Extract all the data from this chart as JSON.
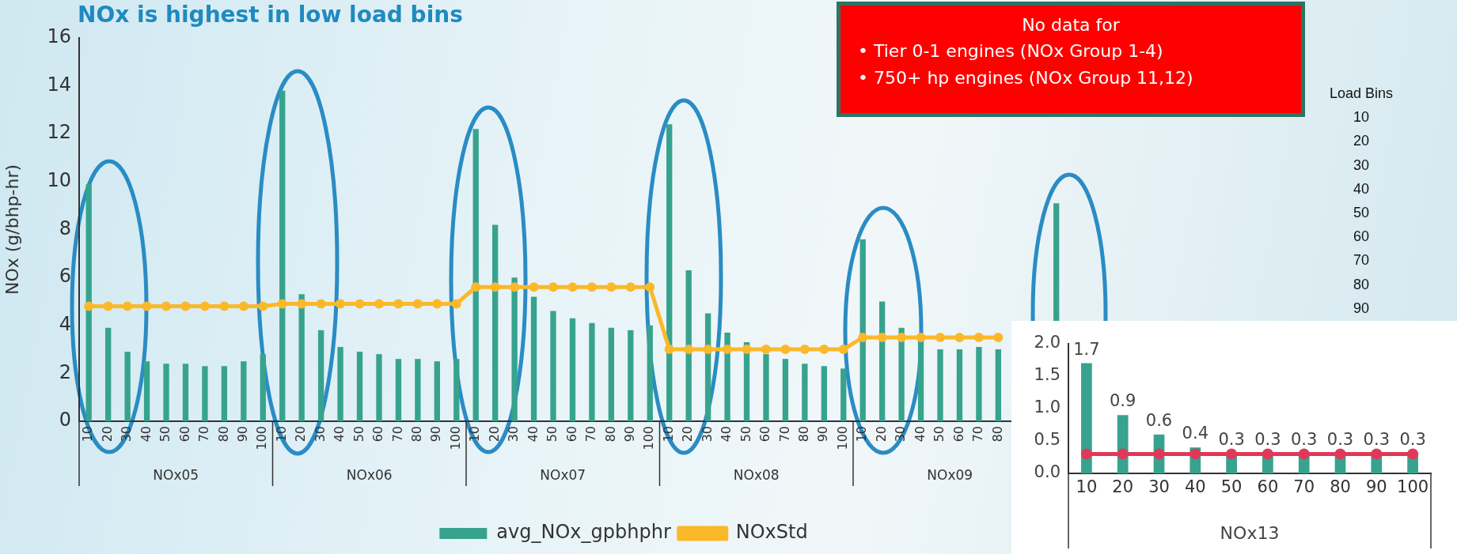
{
  "chart_data": [
    {
      "type": "bar",
      "title": "NOx is highest in low load bins",
      "ylabel": "NOx (g/bhp-hr)",
      "categories": [
        "10",
        "20",
        "30",
        "40",
        "50",
        "60",
        "70",
        "80",
        "90",
        "100",
        "10",
        "20",
        "30",
        "40",
        "50",
        "60",
        "70",
        "80",
        "90",
        "100",
        "10",
        "20",
        "30",
        "40",
        "50",
        "60",
        "70",
        "80",
        "90",
        "100",
        "10",
        "20",
        "30",
        "40",
        "50",
        "60",
        "70",
        "80",
        "90",
        "100",
        "10",
        "20",
        "30",
        "40",
        "50",
        "60",
        "70",
        "80",
        null,
        null,
        null,
        null,
        null,
        null,
        null,
        null,
        null,
        null,
        null,
        null
      ],
      "series": [
        {
          "name": "avg_NOx_gpbhphr",
          "color": "#37a38e",
          "values": [
            9.9,
            3.9,
            2.9,
            2.5,
            2.4,
            2.4,
            2.3,
            2.3,
            2.5,
            2.8,
            13.8,
            5.3,
            3.8,
            3.1,
            2.9,
            2.8,
            2.6,
            2.6,
            2.5,
            2.6,
            12.2,
            8.2,
            6.0,
            5.2,
            4.6,
            4.3,
            4.1,
            3.9,
            3.8,
            4.0,
            12.4,
            6.3,
            4.5,
            3.7,
            3.3,
            2.8,
            2.6,
            2.4,
            2.3,
            2.2,
            7.6,
            5.0,
            3.9,
            3.4,
            3.0,
            3.0,
            3.1,
            3.0,
            null,
            null,
            9.1,
            null,
            null,
            null,
            null,
            null,
            null,
            null,
            null,
            null
          ]
        },
        {
          "name": "NOxStd",
          "type": "line",
          "color": "#fbb829",
          "values": [
            4.8,
            4.8,
            4.8,
            4.8,
            4.8,
            4.8,
            4.8,
            4.8,
            4.8,
            4.8,
            4.9,
            4.9,
            4.9,
            4.9,
            4.9,
            4.9,
            4.9,
            4.9,
            4.9,
            4.9,
            5.6,
            5.6,
            5.6,
            5.6,
            5.6,
            5.6,
            5.6,
            5.6,
            5.6,
            5.6,
            3.0,
            3.0,
            3.0,
            3.0,
            3.0,
            3.0,
            3.0,
            3.0,
            3.0,
            3.0,
            3.5,
            3.5,
            3.5,
            3.5,
            3.5,
            3.5,
            3.5,
            3.5,
            null,
            null,
            null,
            null,
            null,
            null,
            null,
            null,
            null,
            null,
            null,
            null
          ]
        }
      ],
      "ylim": [
        0,
        16
      ],
      "yticks": [
        0,
        2,
        4,
        6,
        8,
        10,
        12,
        14,
        16
      ],
      "marker": "circle",
      "legend": "bottom",
      "annotations": [
        "NOx05",
        "NOx06",
        "NOx07",
        "NOx08",
        "NOx09",
        "No data for",
        "• Tier 0-1 engines (NOx Group 1-4)",
        "• 750+ hp engines (NOx Group 11,12)",
        "Load Bins",
        "10",
        "20",
        "30",
        "40",
        "50",
        "60",
        "70",
        "80",
        "90"
      ]
    },
    {
      "type": "bar",
      "xlabel": "NOx13",
      "categories": [
        "10",
        "20",
        "30",
        "40",
        "50",
        "60",
        "70",
        "80",
        "90",
        "100"
      ],
      "series": [
        {
          "color": "#37a38e",
          "values": [
            1.7,
            0.9,
            0.6,
            0.4,
            0.3,
            0.3,
            0.3,
            0.3,
            0.3,
            0.3
          ],
          "value_labels": [
            "1.7",
            "0.9",
            "0.6",
            "0.4",
            "0.3",
            "0.3",
            "0.3",
            "0.3",
            "0.3",
            "0.3"
          ]
        },
        {
          "type": "line",
          "color": "#e0385a",
          "values": [
            0.3,
            0.3,
            0.3,
            0.3,
            0.3,
            0.3,
            0.3,
            0.3,
            0.3,
            0.3
          ]
        }
      ],
      "ylim": [
        0,
        2
      ],
      "yticks": [
        {
          "value": 0,
          "label": "0.0"
        },
        {
          "value": 0.5,
          "label": "0.5"
        },
        {
          "value": 1,
          "label": "1.0"
        },
        {
          "value": 1.5,
          "label": "1.5"
        },
        {
          "value": 2,
          "label": "2.0"
        }
      ],
      "marker": "circle"
    }
  ]
}
